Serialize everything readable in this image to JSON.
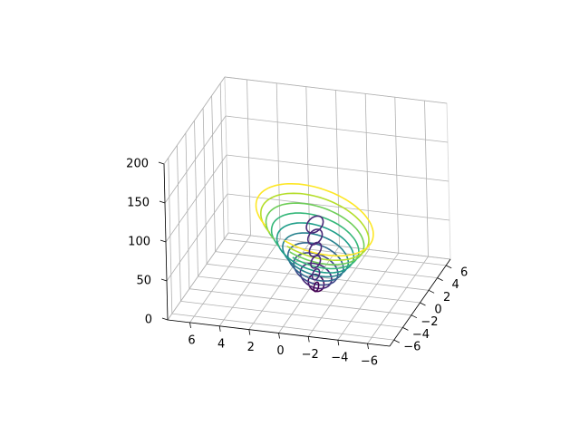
{
  "chart_data": {
    "type": "contour3d",
    "title": "",
    "xlabel": "",
    "ylabel": "",
    "zlabel": "",
    "colormap": "viridis",
    "colors": [
      "#440154",
      "#482878",
      "#3e4989",
      "#31688e",
      "#26828e",
      "#1f9e89",
      "#35b779",
      "#6ece58",
      "#b5de2b",
      "#fde725"
    ],
    "xlim": [
      -7.5,
      7.5
    ],
    "ylim": [
      -7,
      7
    ],
    "zlim": [
      0,
      200
    ],
    "x_ticks": [
      {
        "value": 6,
        "label": "6"
      },
      {
        "value": 4,
        "label": "4"
      },
      {
        "value": 2,
        "label": "2"
      },
      {
        "value": 0,
        "label": "0"
      },
      {
        "value": -2,
        "label": "−2"
      },
      {
        "value": -4,
        "label": "−4"
      },
      {
        "value": -6,
        "label": "−6"
      }
    ],
    "y_ticks": [
      {
        "value": 6,
        "label": "6"
      },
      {
        "value": 4,
        "label": "4"
      },
      {
        "value": 2,
        "label": "2"
      },
      {
        "value": 0,
        "label": "0"
      },
      {
        "value": -2,
        "label": "−2"
      },
      {
        "value": -4,
        "label": "−4"
      },
      {
        "value": -6,
        "label": "−6"
      }
    ],
    "z_ticks": [
      {
        "value": 0,
        "label": "0"
      },
      {
        "value": 50,
        "label": "50"
      },
      {
        "value": 100,
        "label": "100"
      },
      {
        "value": 150,
        "label": "150"
      },
      {
        "value": 200,
        "label": "200"
      }
    ],
    "levels": [
      2,
      8,
      16,
      25,
      35,
      48,
      62,
      78,
      95,
      112
    ],
    "grid": true,
    "legend": "none"
  }
}
